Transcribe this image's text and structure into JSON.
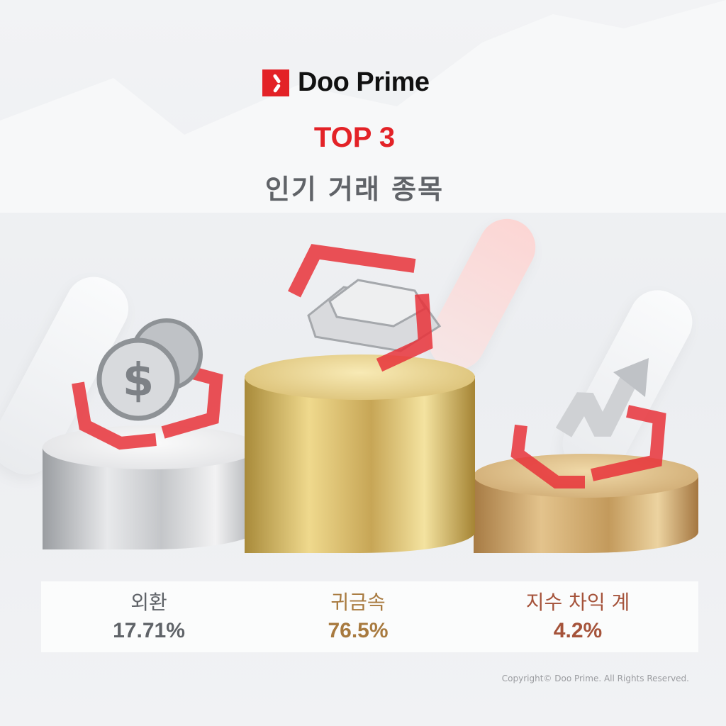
{
  "brand": {
    "name": "Doo Prime",
    "color": "#e32227"
  },
  "headline": "TOP 3",
  "subtitle": "인기 거래 종목",
  "ranking": [
    {
      "label": "외환",
      "value": "17.71%",
      "color": "#5f6368",
      "podium": "silver",
      "icon": "coin-dollar-icon"
    },
    {
      "label": "귀금속",
      "value": "76.5%",
      "color": "#a87a3f",
      "podium": "gold",
      "icon": "gold-bars-icon"
    },
    {
      "label": "지수 차익 계",
      "value": "4.2%",
      "color": "#a5533a",
      "podium": "bronze",
      "icon": "trend-arrow-icon"
    }
  ],
  "copyright": "Copyright© Doo Prime. All Rights Reserved."
}
